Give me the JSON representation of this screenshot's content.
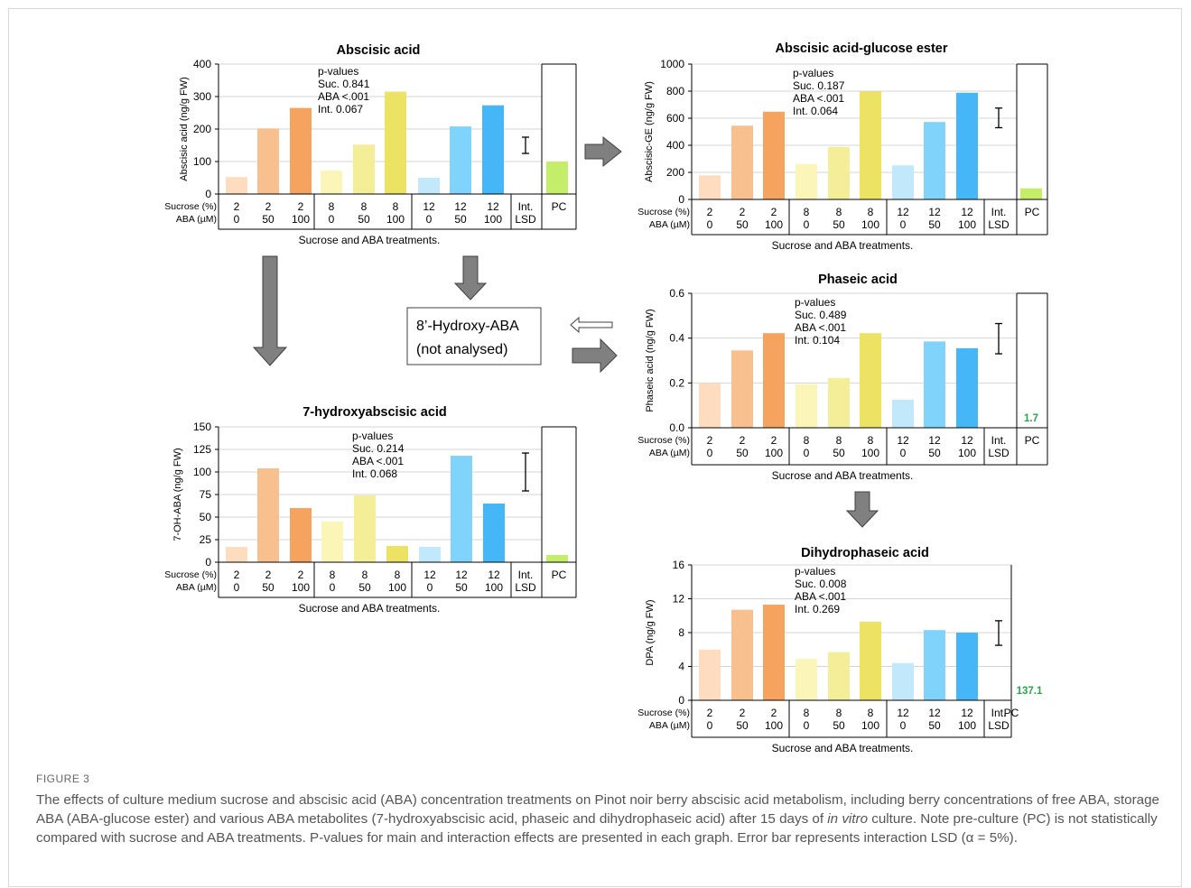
{
  "figure": {
    "label": "FIGURE 3",
    "caption_a": "The effects of culture medium sucrose and abscisic acid (ABA) concentration treatments on Pinot noir berry abscisic acid metabolism, including berry concentrations of free ABA, storage ABA (ABA-glucose ester) and various ABA metabolites (7-hydroxyabscisic acid, phaseic and dihydrophaseic acid) after 15 days of ",
    "caption_italic": "in vitro",
    "caption_b": " culture. Note pre-culture (PC) is not statistically compared with sucrose and ABA treatments. P-values for main and interaction effects are presented in each graph. Error bar represents interaction LSD (α = 5%)."
  },
  "pathway": {
    "box_lines": [
      "8’-Hydroxy-ABA",
      "(not analysed)"
    ]
  },
  "table_labels": {
    "sucrose_row_label": "Sucrose (%)",
    "aba_row_label": "ABA (µM)",
    "sucrose_levels": [
      "2",
      "2",
      "2",
      "8",
      "8",
      "8",
      "12",
      "12",
      "12"
    ],
    "aba_levels": [
      "0",
      "50",
      "100",
      "0",
      "50",
      "100",
      "0",
      "50",
      "100"
    ],
    "lsd_top": "Int.",
    "lsd_bottom": "LSD",
    "pc_label": "PC",
    "x_title": "Sucrose and ABA treatments."
  },
  "colors": {
    "bars": [
      "#fddcc0",
      "#f8c08f",
      "#f5a35e",
      "#fbf6b8",
      "#f4ee98",
      "#ece365",
      "#c1e9fb",
      "#80d3fb",
      "#46b7f6"
    ],
    "pc": "#c4ee6a",
    "pc_label_text": "#2aa64a"
  },
  "chart_data": [
    {
      "type": "bar",
      "title": "Abscisic acid",
      "ylabel": "Abscisic acid (ng/g FW)",
      "ylim": [
        0,
        400
      ],
      "yticks": [
        "0",
        "100",
        "200",
        "300",
        "400"
      ],
      "categories": [
        "2 / 0",
        "2 / 50",
        "2 / 100",
        "8 / 0",
        "8 / 50",
        "8 / 100",
        "12 / 0",
        "12 / 50",
        "12 / 100"
      ],
      "values": [
        52,
        202,
        265,
        72,
        152,
        315,
        50,
        208,
        273
      ],
      "pc": {
        "value": 100,
        "label": ""
      },
      "lsd": [
        125,
        175
      ],
      "pvalues": [
        "p-values",
        "Suc.  0.841",
        "ABA <.001",
        "Int.   0.067"
      ],
      "grid": true
    },
    {
      "type": "bar",
      "title": "Abscisic acid-glucose ester",
      "ylabel": "Abscisic-GE (ng/g FW)",
      "ylim": [
        0,
        1000
      ],
      "yticks": [
        "0",
        "200",
        "400",
        "600",
        "800",
        "1000"
      ],
      "categories": [
        "2 / 0",
        "2 / 50",
        "2 / 100",
        "8 / 0",
        "8 / 50",
        "8 / 100",
        "12 / 0",
        "12 / 50",
        "12 / 100"
      ],
      "values": [
        178,
        545,
        648,
        262,
        388,
        798,
        252,
        572,
        788
      ],
      "pc": {
        "value": 82,
        "label": ""
      },
      "lsd": [
        530,
        675
      ],
      "pvalues": [
        "p-values",
        "Suc.  0.187",
        "ABA <.001",
        "Int.   0.064"
      ],
      "grid": true
    },
    {
      "type": "bar",
      "title": "7-hydroxyabscisic acid",
      "ylabel": "7-OH-ABA (ng/g FW)",
      "ylim": [
        0,
        150
      ],
      "yticks": [
        "0",
        "25",
        "50",
        "75",
        "100",
        "125",
        "150"
      ],
      "categories": [
        "2 / 0",
        "2 / 50",
        "2 / 100",
        "8 / 0",
        "8 / 50",
        "8 / 100",
        "12 / 0",
        "12 / 50",
        "12 / 100"
      ],
      "values": [
        17,
        104,
        60,
        45,
        74,
        18,
        17,
        118,
        65
      ],
      "pc": {
        "value": 8,
        "label": ""
      },
      "lsd": [
        79,
        121
      ],
      "pvalues": [
        "p-values",
        "Suc.  0.214",
        "ABA <.001",
        "Int.   0.068"
      ],
      "grid": true
    },
    {
      "type": "bar",
      "title": "Phaseic acid",
      "ylabel": "Phaseic acid (ng/g FW)",
      "ylim": [
        0,
        0.6
      ],
      "yticks": [
        "0.0",
        "0.2",
        "0.4",
        "0.6"
      ],
      "categories": [
        "2 / 0",
        "2 / 50",
        "2 / 100",
        "8 / 0",
        "8 / 50",
        "8 / 100",
        "12 / 0",
        "12 / 50",
        "12 / 100"
      ],
      "values": [
        0.2,
        0.345,
        0.422,
        0.195,
        0.222,
        0.422,
        0.125,
        0.385,
        0.355
      ],
      "pc": {
        "value": null,
        "label": "1.7"
      },
      "lsd": [
        0.33,
        0.465
      ],
      "pvalues": [
        "p-values",
        "Suc.  0.489",
        "ABA <.001",
        "Int.   0.104"
      ],
      "grid": true
    },
    {
      "type": "bar",
      "title": "Dihydrophaseic acid",
      "ylabel": "DPA (ng/g FW)",
      "ylim": [
        0,
        16
      ],
      "yticks": [
        "0",
        "4",
        "8",
        "12",
        "16"
      ],
      "categories": [
        "2 / 0",
        "2 / 50",
        "2 / 100",
        "8 / 0",
        "8 / 50",
        "8 / 100",
        "12 / 0",
        "12 / 50",
        "12 / 100"
      ],
      "values": [
        6.0,
        10.7,
        11.3,
        4.9,
        5.7,
        9.3,
        4.4,
        8.3,
        8.0
      ],
      "pc": {
        "value": null,
        "label": "137.1"
      },
      "lsd": [
        6.5,
        9.4
      ],
      "pvalues": [
        "p-values",
        "Suc.  0.008",
        "ABA <.001",
        "Int.   0.269"
      ],
      "grid": true
    }
  ]
}
